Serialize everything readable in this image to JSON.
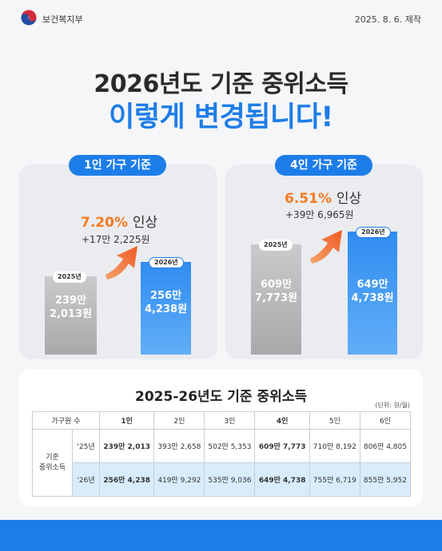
{
  "header": {
    "org": "보건복지부",
    "date": "2025. 8. 6. 제작",
    "logo_icon": "taegeuk-logo-icon"
  },
  "title": {
    "line1": "2026년도 기준 중위소득",
    "line2": "이렇게 변경됩니다!"
  },
  "one_person": {
    "label": "1인 가구 기준",
    "rate": "7.20%",
    "rate_word": "인상",
    "amount": "+17만 2,225원",
    "bar2025": {
      "tag": "2025년",
      "value_line1": "239만",
      "value_line2": "2,013원"
    },
    "bar2026": {
      "tag": "2026년",
      "value_line1": "256만",
      "value_line2": "4,238원"
    }
  },
  "four_person": {
    "label": "4인 가구 기준",
    "rate": "6.51%",
    "rate_word": "인상",
    "amount": "+39만 6,965원",
    "bar2025": {
      "tag": "2025년",
      "value_line1": "609만",
      "value_line2": "7,773원"
    },
    "bar2026": {
      "tag": "2026년",
      "value_line1": "649만",
      "value_line2": "4,738원"
    }
  },
  "table": {
    "title": "2025-26년도 기준 중위소득",
    "unit": "(단위: 원/월)",
    "header_first": "가구원 수",
    "columns": [
      "1인",
      "2인",
      "3인",
      "4인",
      "5인",
      "6인"
    ],
    "row_label_line1": "기준",
    "row_label_line2": "중위소득",
    "rows": [
      {
        "year": "'25년",
        "values": [
          "239만 2,013",
          "393만 2,658",
          "502만 5,353",
          "609만 7,773",
          "710만 8,192",
          "806만 4,805"
        ]
      },
      {
        "year": "'26년",
        "values": [
          "256만 4,238",
          "419만 9,292",
          "535만 9,036",
          "649만 4,738",
          "755만 6,719",
          "855만 5,952"
        ]
      }
    ]
  },
  "colors": {
    "accent": "#1d7de8",
    "orange": "#f47b20",
    "card": "#eaecef",
    "highlight_row": "#d8ecfc"
  }
}
